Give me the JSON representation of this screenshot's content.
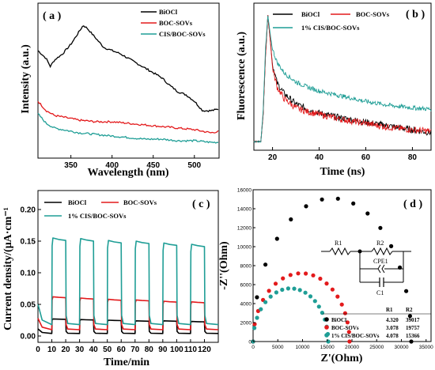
{
  "colors": {
    "black": "#000000",
    "red": "#e31a1c",
    "teal": "#1f9e96"
  },
  "chart_data": [
    {
      "panel": "( a )",
      "type": "line",
      "xlabel": "Wavelength (nm)",
      "ylabel": "Intensity (a.u.)",
      "xlim": [
        310,
        530
      ],
      "xticks": [
        350,
        400,
        450,
        500
      ],
      "legend_position": "top-right",
      "series": [
        {
          "name": "BiOCl",
          "color": "#000000",
          "x": [
            310,
            320,
            325,
            330,
            340,
            350,
            360,
            365,
            370,
            375,
            380,
            390,
            400,
            410,
            420,
            430,
            440,
            450,
            460,
            470,
            480,
            490,
            500,
            510,
            520,
            530
          ],
          "y": [
            0.62,
            0.57,
            0.52,
            0.56,
            0.6,
            0.66,
            0.74,
            0.78,
            0.76,
            0.73,
            0.7,
            0.64,
            0.62,
            0.6,
            0.57,
            0.54,
            0.51,
            0.48,
            0.45,
            0.4,
            0.36,
            0.34,
            0.3,
            0.24,
            0.24,
            0.25
          ]
        },
        {
          "name": "BOC-SOVs",
          "color": "#e31a1c",
          "x": [
            310,
            320,
            330,
            340,
            350,
            360,
            380,
            400,
            420,
            440,
            460,
            480,
            500,
            510,
            520,
            530
          ],
          "y": [
            0.3,
            0.24,
            0.21,
            0.2,
            0.19,
            0.18,
            0.17,
            0.17,
            0.16,
            0.15,
            0.14,
            0.13,
            0.12,
            0.11,
            0.1,
            0.11
          ]
        },
        {
          "name": "CIS/BOC-SOVs",
          "color": "#1f9e96",
          "x": [
            310,
            320,
            330,
            340,
            350,
            360,
            380,
            400,
            420,
            440,
            460,
            480,
            500,
            520,
            530
          ],
          "y": [
            0.22,
            0.16,
            0.13,
            0.12,
            0.11,
            0.1,
            0.09,
            0.08,
            0.07,
            0.06,
            0.06,
            0.05,
            0.05,
            0.04,
            0.04
          ]
        }
      ]
    },
    {
      "panel": "( b )",
      "type": "line",
      "xlabel": "Time (ns)",
      "ylabel": "Fluorescence (a.u.)",
      "xlim": [
        12,
        88
      ],
      "xticks": [
        20,
        40,
        60,
        80
      ],
      "legend_position": "top",
      "series": [
        {
          "name": "BiOCl",
          "color": "#000000",
          "x": [
            12,
            15,
            16,
            17,
            18,
            19,
            20,
            22,
            25,
            30,
            35,
            40,
            50,
            60,
            70,
            80,
            88
          ],
          "y": [
            0.03,
            0.03,
            0.25,
            0.7,
            1.0,
            0.82,
            0.62,
            0.48,
            0.4,
            0.32,
            0.28,
            0.25,
            0.21,
            0.18,
            0.15,
            0.12,
            0.1
          ]
        },
        {
          "name": "BOC-SOVs",
          "color": "#e31a1c",
          "x": [
            12,
            15,
            16,
            17,
            18,
            19,
            20,
            22,
            25,
            30,
            35,
            40,
            50,
            60,
            70,
            80,
            88
          ],
          "y": [
            0.03,
            0.03,
            0.25,
            0.7,
            1.0,
            0.82,
            0.6,
            0.45,
            0.36,
            0.29,
            0.26,
            0.24,
            0.2,
            0.17,
            0.14,
            0.12,
            0.11
          ]
        },
        {
          "name": "1% CIS/BOC-SOVs",
          "color": "#1f9e96",
          "x": [
            12,
            15,
            16,
            17,
            18,
            19,
            20,
            22,
            25,
            30,
            35,
            40,
            50,
            60,
            70,
            80,
            88
          ],
          "y": [
            0.03,
            0.03,
            0.28,
            0.75,
            1.0,
            0.86,
            0.74,
            0.64,
            0.56,
            0.49,
            0.45,
            0.42,
            0.38,
            0.34,
            0.31,
            0.29,
            0.28
          ]
        }
      ]
    },
    {
      "panel": "( c )",
      "type": "line",
      "xlabel": "Time/min",
      "ylabel": "Current density/(μA·cm⁻¹",
      "xlim": [
        0,
        130
      ],
      "ylim": [
        -0.01,
        0.23
      ],
      "xticks": [
        0,
        10,
        20,
        30,
        40,
        50,
        60,
        70,
        80,
        90,
        100,
        110,
        120
      ],
      "yticks": [
        0.0,
        0.05,
        0.1,
        0.15,
        0.2
      ],
      "ytick_labels": [
        "0.00",
        "0.05",
        "0.10",
        "0.15",
        "0.20"
      ],
      "light_on_off_cycles": {
        "on_start": [
          10,
          30,
          50,
          70,
          90,
          110
        ],
        "on_duration": 10
      },
      "legend_position": "top-left",
      "series": [
        {
          "name": "BiOCl",
          "color": "#000000",
          "baseline": 0.004,
          "plateau": [
            0.027,
            0.026,
            0.025,
            0.024,
            0.024,
            0.023
          ]
        },
        {
          "name": "BOC-SOVs",
          "color": "#e31a1c",
          "baseline": 0.01,
          "plateau": [
            0.062,
            0.06,
            0.058,
            0.057,
            0.055,
            0.054
          ]
        },
        {
          "name": "1% CIS/BOC-SOVs",
          "color": "#1f9e96",
          "baseline": 0.018,
          "plateau": [
            0.155,
            0.154,
            0.151,
            0.15,
            0.147,
            0.145
          ]
        }
      ]
    },
    {
      "panel": "( d )",
      "type": "scatter",
      "xlabel": "Z'(Ohm)",
      "ylabel": "-Z''(Ohm)",
      "xlim": [
        0,
        36000
      ],
      "ylim": [
        0,
        16000
      ],
      "xticks": [
        0,
        5000,
        10000,
        15000,
        20000,
        25000,
        30000,
        35000
      ],
      "yticks": [
        0,
        2000,
        4000,
        6000,
        8000,
        10000,
        12000,
        14000,
        16000
      ],
      "legend_position": "bottom-right",
      "series": [
        {
          "name": "BiOCl",
          "color": "#000000",
          "R1": "4.320",
          "R2": "39017",
          "arc_end": 32000,
          "arc_peak": 15100
        },
        {
          "name": "BOC-SOVs",
          "color": "#e31a1c",
          "R1": "3.078",
          "R2": "19757",
          "arc_end": 19500,
          "arc_peak": 7200
        },
        {
          "name": "1% CIS/BOC-SOVs",
          "color": "#1f9e96",
          "R1": "4.078",
          "R2": "15366",
          "arc_end": 15200,
          "arc_peak": 5600
        }
      ],
      "table_header": [
        "R1",
        "R2"
      ],
      "circuit_labels": [
        "R1",
        "R2",
        "CPE1",
        "C1"
      ]
    }
  ]
}
